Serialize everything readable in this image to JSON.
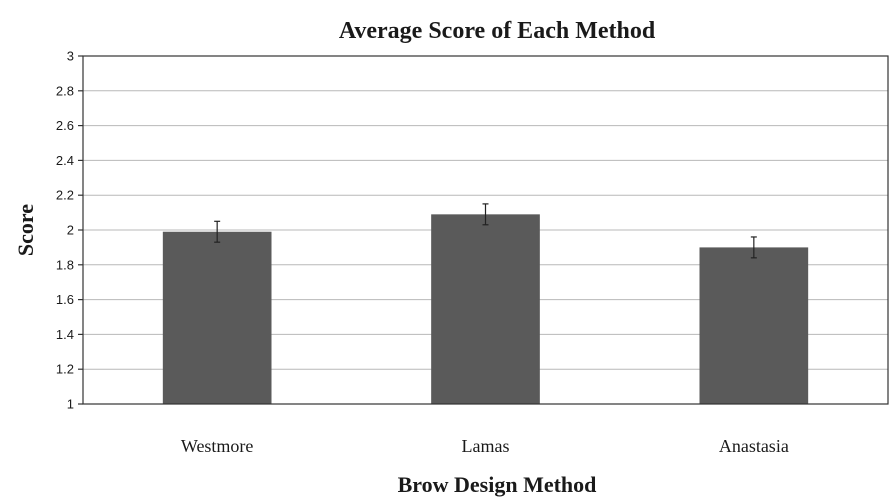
{
  "chart_data": {
    "type": "bar",
    "title": "Average Score of Each Method",
    "xlabel": "Brow Design Method",
    "ylabel": "Score",
    "categories": [
      "Westmore",
      "Lamas",
      "Anastasia"
    ],
    "values": [
      1.99,
      2.09,
      1.9
    ],
    "error": [
      0.06,
      0.06,
      0.06
    ],
    "ylim": [
      1,
      3
    ],
    "yticks": [
      1,
      1.2,
      1.4,
      1.6,
      1.8,
      2,
      2.2,
      2.4,
      2.6,
      2.8,
      3
    ],
    "ytick_labels": [
      "1",
      "1.2",
      "1.4",
      "1.6",
      "1.8",
      "2",
      "2.2",
      "2.4",
      "2.6",
      "2.8",
      "3"
    ],
    "grid": true,
    "legend": "none",
    "bar_color": "#5a5a5a"
  }
}
